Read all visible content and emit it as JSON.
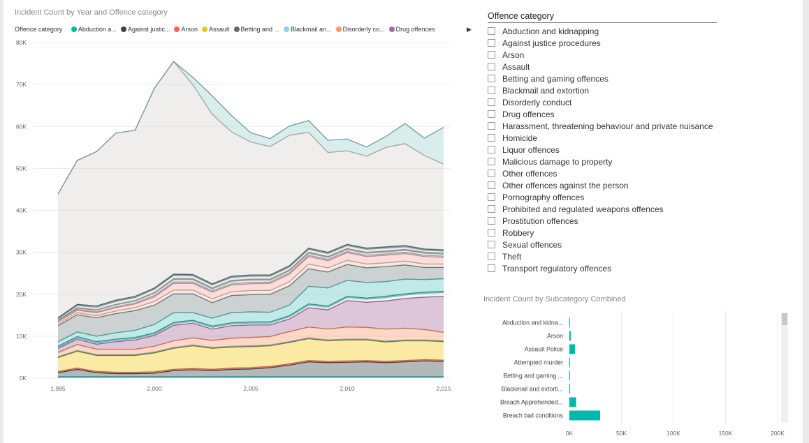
{
  "area_chart": {
    "title": "Incident Count by Year and Offence category",
    "legend_header": "Offence category",
    "legend_items": [
      {
        "label": "Abduction a...",
        "color": "#01b8aa"
      },
      {
        "label": "Against justic...",
        "color": "#374649"
      },
      {
        "label": "Arson",
        "color": "#fd625e"
      },
      {
        "label": "Assault",
        "color": "#f2c80f"
      },
      {
        "label": "Betting and ...",
        "color": "#5f6b6d"
      },
      {
        "label": "Blackmail an...",
        "color": "#8ad4eb"
      },
      {
        "label": "Disorderly co...",
        "color": "#fe9666"
      },
      {
        "label": "Drug offences",
        "color": "#a66999"
      }
    ],
    "legend_more_icon": "▶"
  },
  "slicer": {
    "title": "Offence category",
    "items": [
      "Abduction and kidnapping",
      "Against justice procedures",
      "Arson",
      "Assault",
      "Betting and gaming offences",
      "Blackmail and extortion",
      "Disorderly conduct",
      "Drug offences",
      "Harassment, threatening behaviour and private nuisance",
      "Homicide",
      "Liquor offences",
      "Malicious damage to property",
      "Other offences",
      "Other offences against the person",
      "Pornography offences",
      "Prohibited and regulated weapons offences",
      "Prostitution offences",
      "Robbery",
      "Sexual offences",
      "Theft",
      "Transport regulatory offences"
    ]
  },
  "bar_chart_title": "Incident Count by Subcategory Combined",
  "chart_data": [
    {
      "type": "area",
      "stacked": true,
      "title": "Incident Count by Year and Offence category",
      "xlabel": "",
      "ylabel": "",
      "x": [
        1995,
        1996,
        1997,
        1998,
        1999,
        2000,
        2001,
        2002,
        2003,
        2004,
        2005,
        2006,
        2007,
        2008,
        2009,
        2010,
        2011,
        2012,
        2013,
        2014,
        2015
      ],
      "x_tick_labels": [
        "1,995",
        "2,000",
        "2,005",
        "2,010",
        "2,015"
      ],
      "x_ticks": [
        1995,
        2000,
        2005,
        2010,
        2015
      ],
      "y_tick_labels": [
        "0K",
        "10K",
        "20K",
        "30K",
        "40K",
        "50K",
        "60K",
        "70K",
        "80K"
      ],
      "ylim": [
        0,
        80000
      ],
      "grid": true,
      "legend_position": "top",
      "series": [
        {
          "name": "Abduction a...",
          "color": "#01b8aa",
          "values": [
            300,
            300,
            300,
            300,
            300,
            300,
            300,
            300,
            300,
            300,
            300,
            300,
            300,
            300,
            300,
            300,
            300,
            300,
            300,
            300,
            300
          ]
        },
        {
          "name": "Against justic...",
          "color": "#374649",
          "values": [
            1000,
            1800,
            1000,
            800,
            800,
            900,
            1500,
            1700,
            1500,
            1800,
            1900,
            2200,
            2800,
            3600,
            3400,
            3500,
            3600,
            3400,
            3600,
            3800,
            3700
          ]
        },
        {
          "name": "Arson",
          "color": "#fd625e",
          "values": [
            300,
            300,
            300,
            300,
            300,
            300,
            300,
            300,
            300,
            300,
            300,
            300,
            300,
            300,
            300,
            300,
            300,
            300,
            300,
            300,
            300
          ]
        },
        {
          "name": "Assault",
          "color": "#f2c80f",
          "values": [
            3300,
            4000,
            3800,
            4000,
            4000,
            4500,
            5000,
            5400,
            5000,
            5000,
            5000,
            4900,
            5100,
            5200,
            4900,
            5000,
            4900,
            4600,
            4700,
            4500,
            4400
          ]
        },
        {
          "name": "Betting and ...",
          "color": "#5f6b6d",
          "values": [
            100,
            100,
            100,
            100,
            100,
            100,
            100,
            100,
            100,
            100,
            100,
            100,
            100,
            100,
            100,
            100,
            100,
            100,
            100,
            100,
            100
          ]
        },
        {
          "name": "Blackmail an...",
          "color": "#8ad4eb",
          "values": [
            100,
            100,
            100,
            100,
            100,
            100,
            100,
            100,
            100,
            100,
            100,
            100,
            100,
            100,
            100,
            100,
            100,
            100,
            100,
            100,
            100
          ]
        },
        {
          "name": "Disorderly co...",
          "color": "#fe9666",
          "values": [
            1000,
            1400,
            1300,
            1300,
            1300,
            1400,
            1600,
            1700,
            1700,
            1900,
            2000,
            2000,
            2400,
            2600,
            2600,
            2900,
            2800,
            2900,
            2800,
            2500,
            2000
          ]
        },
        {
          "name": "Drug offences",
          "color": "#a66999",
          "values": [
            1000,
            1300,
            1200,
            1800,
            2200,
            2600,
            3700,
            3500,
            2700,
            3000,
            3000,
            2800,
            3000,
            4600,
            4600,
            6300,
            6000,
            6700,
            7100,
            7700,
            8600
          ]
        },
        {
          "name": "Harassment, threatening behaviour and private nuisance",
          "color": "#cfe0ea",
          "values": [
            200,
            300,
            300,
            300,
            300,
            300,
            400,
            400,
            400,
            400,
            400,
            400,
            500,
            600,
            600,
            700,
            700,
            800,
            800,
            900,
            900
          ]
        },
        {
          "name": "Homicide",
          "color": "#2bb3aa",
          "values": [
            300,
            300,
            300,
            300,
            300,
            300,
            300,
            300,
            300,
            300,
            300,
            300,
            300,
            300,
            300,
            300,
            300,
            300,
            300,
            300,
            300
          ]
        },
        {
          "name": "Liquor offences",
          "color": "#5cc9c1",
          "values": [
            1100,
            1100,
            1300,
            1500,
            1700,
            2000,
            2300,
            1800,
            1900,
            2400,
            2400,
            2300,
            2500,
            4200,
            4300,
            3800,
            3700,
            3500,
            3500,
            3000,
            3000
          ]
        },
        {
          "name": "Malicious damage to property",
          "color": "#7a8688",
          "values": [
            3800,
            4100,
            4400,
            4600,
            4700,
            4600,
            4500,
            4500,
            3700,
            4100,
            4100,
            4300,
            4600,
            4200,
            3800,
            3800,
            3500,
            3600,
            3400,
            2900,
            2700
          ]
        },
        {
          "name": "Other offences",
          "color": "#e2c9b3",
          "values": [
            400,
            500,
            500,
            600,
            700,
            900,
            900,
            900,
            900,
            900,
            1000,
            900,
            1000,
            1100,
            1000,
            1000,
            900,
            900,
            900,
            800,
            800
          ]
        },
        {
          "name": "Other offences against the person",
          "color": "#f6a5a1",
          "values": [
            500,
            600,
            700,
            800,
            900,
            1100,
            1600,
            1600,
            1600,
            1600,
            1600,
            1700,
            1800,
            1800,
            1700,
            1800,
            1800,
            1800,
            1800,
            1800,
            1600
          ]
        },
        {
          "name": "Pornography offences",
          "color": "#d6b7d0",
          "values": [
            200,
            200,
            200,
            200,
            200,
            300,
            300,
            300,
            300,
            300,
            300,
            300,
            300,
            300,
            300,
            300,
            300,
            300,
            300,
            300,
            300
          ]
        },
        {
          "name": "Prohibited and regulated weapons offences",
          "color": "#9fd6cf",
          "values": [
            200,
            300,
            400,
            500,
            500,
            600,
            600,
            600,
            500,
            600,
            600,
            500,
            500,
            500,
            500,
            500,
            500,
            500,
            500,
            500,
            500
          ]
        },
        {
          "name": "Prostitution offences",
          "color": "#b8aaa8",
          "values": [
            100,
            100,
            100,
            100,
            100,
            100,
            200,
            200,
            200,
            200,
            200,
            200,
            200,
            200,
            200,
            200,
            200,
            200,
            200,
            200,
            200
          ]
        },
        {
          "name": "Robbery",
          "color": "#d9c8c6",
          "values": [
            300,
            500,
            600,
            700,
            700,
            800,
            800,
            700,
            700,
            700,
            700,
            700,
            700,
            700,
            700,
            700,
            700,
            700,
            600,
            500,
            500
          ]
        },
        {
          "name": "Sexual offences",
          "color": "#316f7a",
          "values": [
            200,
            300,
            300,
            300,
            300,
            300,
            300,
            300,
            300,
            300,
            300,
            300,
            300,
            300,
            300,
            300,
            300,
            300,
            300,
            300,
            300
          ]
        },
        {
          "name": "Theft",
          "color": "#d8d0d0",
          "values": [
            29500,
            34300,
            36800,
            39800,
            39600,
            47600,
            50700,
            45200,
            40400,
            34400,
            31700,
            30600,
            31100,
            27600,
            23800,
            22300,
            21900,
            23700,
            24300,
            22300,
            20400
          ]
        },
        {
          "name": "Transport regulatory offences",
          "color": "#9ad0cc",
          "values": [
            0,
            0,
            0,
            0,
            0,
            0,
            0,
            1800,
            4400,
            3900,
            2200,
            1900,
            2200,
            2800,
            2900,
            2800,
            2200,
            2600,
            4800,
            4100,
            8800
          ]
        }
      ]
    },
    {
      "type": "bar",
      "orientation": "horizontal",
      "title": "Incident Count by Subcategory Combined",
      "categories": [
        "Abduction and kidna...",
        "Arson",
        "Assault Police",
        "Attempted murder",
        "Betting and gaming ...",
        "Blackmail and extorti...",
        "Breach Apprehended...",
        "Breach bail conditions"
      ],
      "values": [
        200,
        1500,
        5500,
        300,
        100,
        200,
        6500,
        29500
      ],
      "color": "#01b8aa",
      "x_tick_labels": [
        "0K",
        "50K",
        "100K",
        "150K",
        "200K"
      ],
      "xlim": [
        0,
        200000
      ],
      "grid": true
    }
  ]
}
